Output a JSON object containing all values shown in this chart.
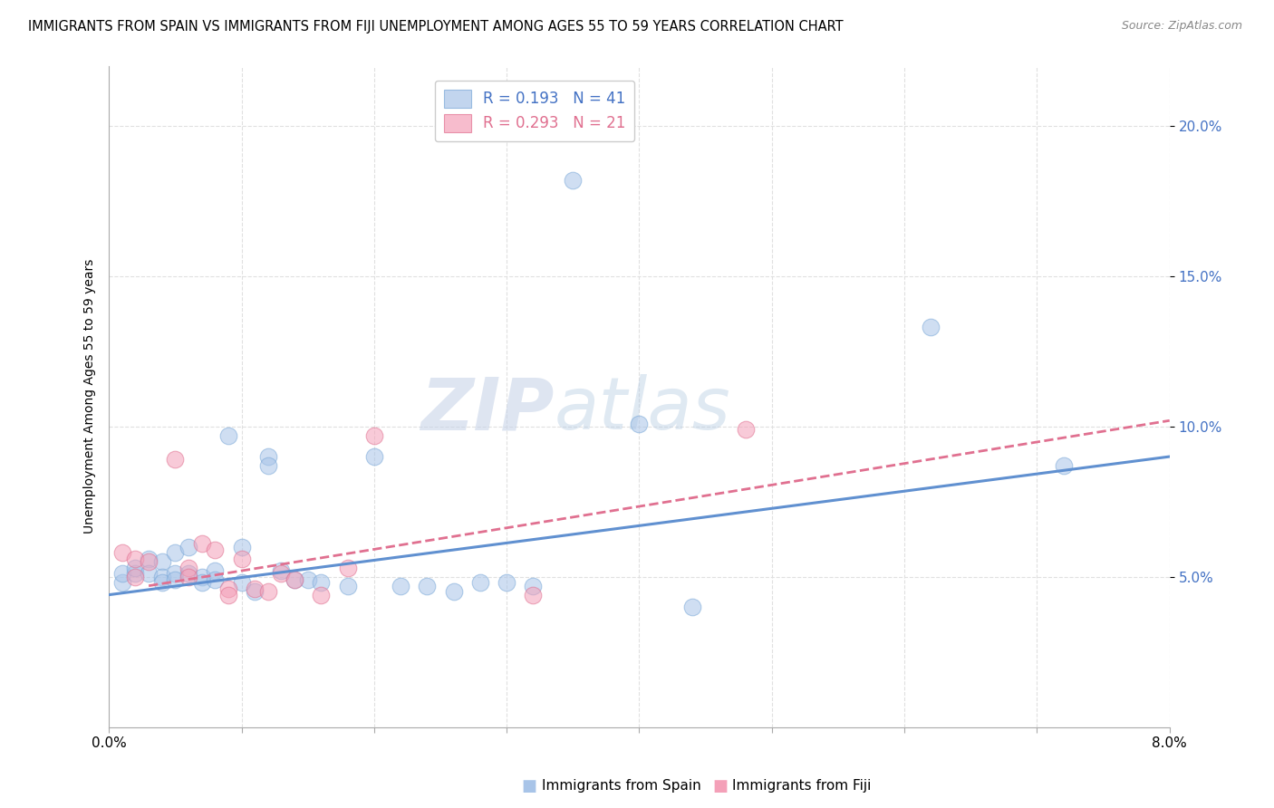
{
  "title": "IMMIGRANTS FROM SPAIN VS IMMIGRANTS FROM FIJI UNEMPLOYMENT AMONG AGES 55 TO 59 YEARS CORRELATION CHART",
  "source": "Source: ZipAtlas.com",
  "ylabel": "Unemployment Among Ages 55 to 59 years",
  "ytick_labels": [
    "5.0%",
    "10.0%",
    "15.0%",
    "20.0%"
  ],
  "ytick_values": [
    0.05,
    0.1,
    0.15,
    0.2
  ],
  "xlim": [
    0.0,
    0.08
  ],
  "ylim": [
    0.0,
    0.22
  ],
  "legend1_R": "0.193",
  "legend1_N": "41",
  "legend2_R": "0.293",
  "legend2_N": "21",
  "legend_label1": "Immigrants from Spain",
  "legend_label2": "Immigrants from Fiji",
  "spain_color": "#a8c4e8",
  "fiji_color": "#f4a0b8",
  "spain_scatter_x": [
    0.001,
    0.001,
    0.002,
    0.002,
    0.003,
    0.003,
    0.004,
    0.004,
    0.004,
    0.005,
    0.005,
    0.005,
    0.006,
    0.006,
    0.007,
    0.007,
    0.008,
    0.008,
    0.009,
    0.01,
    0.01,
    0.011,
    0.012,
    0.012,
    0.013,
    0.014,
    0.015,
    0.016,
    0.018,
    0.02,
    0.022,
    0.024,
    0.026,
    0.028,
    0.03,
    0.032,
    0.035,
    0.04,
    0.044,
    0.062,
    0.072
  ],
  "spain_scatter_y": [
    0.048,
    0.051,
    0.051,
    0.053,
    0.056,
    0.051,
    0.055,
    0.05,
    0.048,
    0.058,
    0.051,
    0.049,
    0.06,
    0.051,
    0.05,
    0.048,
    0.052,
    0.049,
    0.097,
    0.06,
    0.048,
    0.045,
    0.09,
    0.087,
    0.052,
    0.049,
    0.049,
    0.048,
    0.047,
    0.09,
    0.047,
    0.047,
    0.045,
    0.048,
    0.048,
    0.047,
    0.182,
    0.101,
    0.04,
    0.133,
    0.087
  ],
  "fiji_scatter_x": [
    0.001,
    0.002,
    0.002,
    0.003,
    0.005,
    0.006,
    0.006,
    0.007,
    0.008,
    0.009,
    0.009,
    0.01,
    0.011,
    0.012,
    0.013,
    0.014,
    0.016,
    0.018,
    0.02,
    0.032,
    0.048
  ],
  "fiji_scatter_y": [
    0.058,
    0.056,
    0.05,
    0.055,
    0.089,
    0.053,
    0.05,
    0.061,
    0.059,
    0.046,
    0.044,
    0.056,
    0.046,
    0.045,
    0.051,
    0.049,
    0.044,
    0.053,
    0.097,
    0.044,
    0.099
  ],
  "spain_line_x": [
    0.0,
    0.08
  ],
  "spain_line_y": [
    0.044,
    0.09
  ],
  "fiji_line_x": [
    0.003,
    0.08
  ],
  "fiji_line_y": [
    0.047,
    0.102
  ],
  "watermark_zip": "ZIP",
  "watermark_atlas": "atlas",
  "bg_color": "#ffffff",
  "grid_color": "#e0e0e0",
  "title_fontsize": 10.5,
  "source_fontsize": 9,
  "tick_fontsize": 11,
  "legend_fontsize": 12
}
